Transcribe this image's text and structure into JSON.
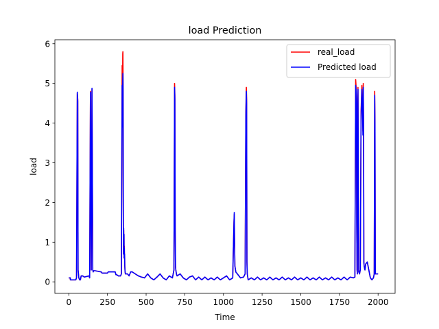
{
  "chart_data": {
    "type": "line",
    "title": "load Prediction",
    "xlabel": "Time",
    "ylabel": "load",
    "xlim": [
      -90,
      2110
    ],
    "ylim": [
      -0.29,
      6.1
    ],
    "xticks": [
      0,
      250,
      500,
      750,
      1000,
      1250,
      1500,
      1750,
      2000
    ],
    "yticks": [
      0,
      1,
      2,
      3,
      4,
      5,
      6
    ],
    "grid": false,
    "legend_position": "top-right",
    "series": [
      {
        "name": "real_load",
        "color": "#ff0000",
        "x": [
          0,
          10,
          10,
          40,
          45,
          50,
          55,
          58,
          60,
          65,
          70,
          75,
          80,
          90,
          100,
          130,
          135,
          140,
          145,
          150,
          155,
          158,
          160,
          165,
          170,
          210,
          215,
          250,
          255,
          300,
          305,
          310,
          320,
          325,
          335,
          340,
          345,
          347,
          348,
          349,
          350,
          351,
          352,
          353,
          354,
          355,
          356,
          357,
          358,
          359,
          360,
          361,
          362,
          364,
          366,
          370,
          380,
          390,
          400,
          410,
          430,
          450,
          470,
          490,
          510,
          530,
          550,
          570,
          590,
          610,
          630,
          650,
          670,
          680,
          684,
          686,
          688,
          690,
          692,
          696,
          700,
          720,
          740,
          760,
          780,
          800,
          820,
          840,
          860,
          880,
          900,
          920,
          940,
          960,
          980,
          1000,
          1020,
          1040,
          1060,
          1068,
          1070,
          1072,
          1074,
          1078,
          1080,
          1090,
          1100,
          1110,
          1130,
          1140,
          1145,
          1148,
          1150,
          1152,
          1154,
          1158,
          1160,
          1180,
          1200,
          1220,
          1240,
          1260,
          1280,
          1300,
          1320,
          1340,
          1360,
          1380,
          1400,
          1420,
          1440,
          1460,
          1480,
          1500,
          1520,
          1540,
          1560,
          1580,
          1600,
          1620,
          1640,
          1660,
          1680,
          1700,
          1720,
          1740,
          1760,
          1780,
          1800,
          1820,
          1840,
          1850,
          1855,
          1858,
          1860,
          1862,
          1864,
          1866,
          1868,
          1870,
          1875,
          1880,
          1885,
          1890,
          1895,
          1900,
          1902,
          1904,
          1906,
          1908,
          1910,
          1912,
          1915,
          1920,
          1930,
          1940,
          1950,
          1960,
          1970,
          1975,
          1978,
          1980,
          1982,
          1985,
          1990,
          2000
        ],
        "y": [
          0.1,
          0.1,
          0.05,
          0.05,
          0.05,
          0.1,
          4.75,
          4.6,
          0.3,
          0.1,
          0.05,
          0.05,
          0.15,
          0.15,
          0.12,
          0.15,
          0.1,
          4.8,
          0.3,
          4.85,
          0.3,
          0.25,
          0.28,
          0.28,
          0.28,
          0.25,
          0.22,
          0.22,
          0.25,
          0.25,
          0.18,
          0.18,
          0.15,
          0.15,
          0.15,
          0.2,
          5.45,
          4.2,
          5.1,
          5.75,
          5.8,
          5.0,
          2.8,
          1.0,
          0.7,
          1.3,
          0.8,
          1.2,
          0.6,
          0.9,
          0.6,
          0.7,
          0.4,
          0.25,
          0.2,
          0.2,
          0.2,
          0.15,
          0.25,
          0.25,
          0.2,
          0.15,
          0.12,
          0.1,
          0.2,
          0.1,
          0.05,
          0.12,
          0.2,
          0.1,
          0.05,
          0.15,
          0.1,
          0.3,
          5.0,
          4.7,
          1.3,
          0.4,
          0.3,
          0.2,
          0.15,
          0.2,
          0.1,
          0.05,
          0.12,
          0.15,
          0.05,
          0.12,
          0.05,
          0.12,
          0.05,
          0.1,
          0.05,
          0.12,
          0.05,
          0.1,
          0.15,
          0.05,
          0.1,
          1.5,
          1.7,
          1.0,
          0.4,
          0.3,
          0.25,
          0.2,
          0.15,
          0.1,
          0.12,
          0.2,
          4.3,
          4.9,
          4.6,
          0.5,
          0.2,
          0.1,
          0.05,
          0.1,
          0.05,
          0.12,
          0.05,
          0.1,
          0.05,
          0.12,
          0.05,
          0.1,
          0.05,
          0.12,
          0.05,
          0.1,
          0.05,
          0.12,
          0.05,
          0.1,
          0.05,
          0.12,
          0.05,
          0.1,
          0.05,
          0.12,
          0.05,
          0.1,
          0.05,
          0.12,
          0.05,
          0.1,
          0.05,
          0.12,
          0.05,
          0.12,
          0.1,
          0.12,
          5.1,
          4.9,
          4.6,
          1.5,
          0.3,
          0.2,
          4.6,
          4.9,
          0.25,
          0.2,
          0.3,
          4.3,
          4.95,
          4.2,
          3.8,
          5.0,
          4.1,
          0.5,
          0.4,
          0.35,
          0.3,
          0.45,
          0.5,
          0.3,
          0.1,
          0.05,
          0.1,
          0.2,
          4.8,
          4.0,
          0.2,
          0.2,
          0.2,
          0.2
        ]
      },
      {
        "name": "Predicted load",
        "color": "#0000ff",
        "x": [
          0,
          10,
          10,
          40,
          45,
          50,
          55,
          58,
          60,
          65,
          70,
          75,
          80,
          90,
          100,
          130,
          135,
          140,
          145,
          150,
          155,
          158,
          160,
          165,
          170,
          210,
          215,
          250,
          255,
          300,
          305,
          310,
          320,
          325,
          335,
          340,
          345,
          347,
          348,
          349,
          350,
          351,
          352,
          353,
          354,
          355,
          356,
          357,
          358,
          359,
          360,
          361,
          362,
          364,
          366,
          370,
          380,
          390,
          400,
          410,
          430,
          450,
          470,
          490,
          510,
          530,
          550,
          570,
          590,
          610,
          630,
          650,
          670,
          680,
          684,
          686,
          688,
          690,
          692,
          696,
          700,
          720,
          740,
          760,
          780,
          800,
          820,
          840,
          860,
          880,
          900,
          920,
          940,
          960,
          980,
          1000,
          1020,
          1040,
          1060,
          1068,
          1070,
          1072,
          1074,
          1078,
          1080,
          1090,
          1100,
          1110,
          1130,
          1140,
          1145,
          1148,
          1150,
          1152,
          1154,
          1158,
          1160,
          1180,
          1200,
          1220,
          1240,
          1260,
          1280,
          1300,
          1320,
          1340,
          1360,
          1380,
          1400,
          1420,
          1440,
          1460,
          1480,
          1500,
          1520,
          1540,
          1560,
          1580,
          1600,
          1620,
          1640,
          1660,
          1680,
          1700,
          1720,
          1740,
          1760,
          1780,
          1800,
          1820,
          1840,
          1850,
          1855,
          1858,
          1860,
          1862,
          1864,
          1866,
          1868,
          1870,
          1875,
          1880,
          1885,
          1890,
          1895,
          1900,
          1902,
          1904,
          1906,
          1908,
          1910,
          1912,
          1915,
          1920,
          1930,
          1940,
          1950,
          1960,
          1970,
          1975,
          1978,
          1980,
          1982,
          1985,
          1990,
          2000
        ],
        "y": [
          0.1,
          0.1,
          0.05,
          0.05,
          0.05,
          0.1,
          4.78,
          4.55,
          0.3,
          0.1,
          0.05,
          0.05,
          0.15,
          0.15,
          0.12,
          0.15,
          0.1,
          4.78,
          0.3,
          4.88,
          0.3,
          0.25,
          0.28,
          0.28,
          0.28,
          0.25,
          0.22,
          0.22,
          0.25,
          0.25,
          0.18,
          0.18,
          0.15,
          0.15,
          0.15,
          0.2,
          4.95,
          3.9,
          4.8,
          5.1,
          5.25,
          4.8,
          2.8,
          1.0,
          0.7,
          1.35,
          0.8,
          1.2,
          0.6,
          0.85,
          0.6,
          0.7,
          0.4,
          0.25,
          0.2,
          0.2,
          0.2,
          0.15,
          0.25,
          0.25,
          0.2,
          0.15,
          0.12,
          0.1,
          0.2,
          0.1,
          0.05,
          0.12,
          0.2,
          0.1,
          0.05,
          0.15,
          0.1,
          0.3,
          4.9,
          4.6,
          1.3,
          0.4,
          0.3,
          0.2,
          0.15,
          0.2,
          0.1,
          0.05,
          0.12,
          0.15,
          0.05,
          0.12,
          0.05,
          0.12,
          0.05,
          0.1,
          0.05,
          0.12,
          0.05,
          0.1,
          0.15,
          0.05,
          0.1,
          1.5,
          1.75,
          1.0,
          0.4,
          0.3,
          0.25,
          0.2,
          0.15,
          0.1,
          0.12,
          0.2,
          4.2,
          4.8,
          4.5,
          0.5,
          0.2,
          0.1,
          0.05,
          0.1,
          0.05,
          0.12,
          0.05,
          0.1,
          0.05,
          0.12,
          0.05,
          0.1,
          0.05,
          0.12,
          0.05,
          0.1,
          0.05,
          0.12,
          0.05,
          0.1,
          0.05,
          0.12,
          0.05,
          0.1,
          0.05,
          0.12,
          0.05,
          0.1,
          0.05,
          0.12,
          0.05,
          0.1,
          0.05,
          0.12,
          0.05,
          0.12,
          0.1,
          0.12,
          4.95,
          4.8,
          4.5,
          1.5,
          0.3,
          0.2,
          4.5,
          4.85,
          0.25,
          0.2,
          0.3,
          4.2,
          4.85,
          4.1,
          3.7,
          4.9,
          4.0,
          0.5,
          0.4,
          0.35,
          0.3,
          0.45,
          0.5,
          0.3,
          0.1,
          0.05,
          0.1,
          0.2,
          4.7,
          3.9,
          0.2,
          0.2,
          0.2,
          0.2
        ]
      }
    ]
  }
}
